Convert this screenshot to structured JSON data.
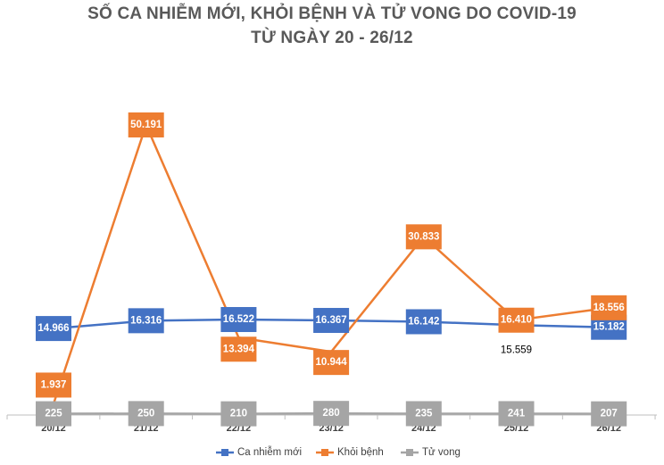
{
  "chart_data": {
    "type": "line",
    "title": "SỐ CA NHIỄM MỚI, KHỎI BỆNH VÀ TỬ VONG DO COVID-19",
    "subtitle": "TỪ NGÀY 20 - 26/12",
    "categories": [
      "20/12",
      "21/12",
      "22/12",
      "23/12",
      "24/12",
      "25/12",
      "26/12"
    ],
    "ylim": [
      0,
      55000
    ],
    "series": [
      {
        "name": "Ca nhiễm mới",
        "color": "#4472C4",
        "values": [
          14966,
          16316,
          16522,
          16367,
          16142,
          15559,
          15182
        ],
        "labels": [
          "14.966",
          "16.316",
          "16.522",
          "16.367",
          "16.142",
          "15.559",
          "15.182"
        ]
      },
      {
        "name": "Khỏi bệnh",
        "color": "#ED7D31",
        "values": [
          1937,
          50191,
          13394,
          10944,
          30833,
          16410,
          18556
        ],
        "labels": [
          "1.937",
          "50.191",
          "13.394",
          "10.944",
          "30.833",
          "16.410",
          "18.556"
        ]
      },
      {
        "name": "Tử vong",
        "color": "#A5A5A5",
        "values": [
          225,
          250,
          210,
          280,
          235,
          241,
          207
        ],
        "labels": [
          "225",
          "250",
          "210",
          "280",
          "235",
          "241",
          "207"
        ]
      }
    ],
    "legend": "bottom"
  }
}
